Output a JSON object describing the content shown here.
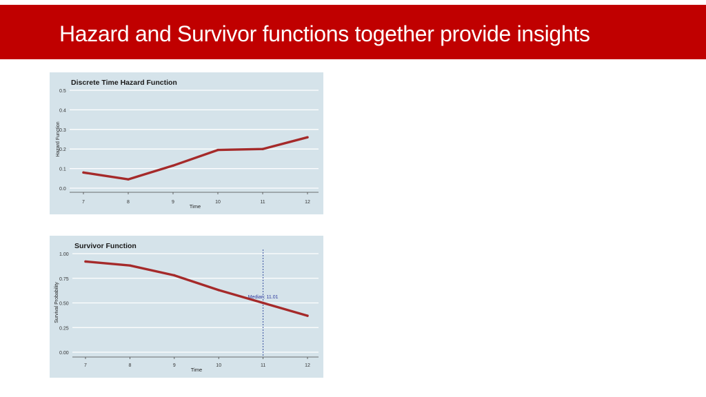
{
  "slide": {
    "title": "Hazard and Survivor functions together provide insights"
  },
  "colors": {
    "header_bg": "#c00000",
    "panel_bg": "#d5e3ea",
    "line": "#a52a2a",
    "median_line": "#1f3a93",
    "median_text": "#2e3a9e"
  },
  "chart_data": [
    {
      "type": "line",
      "title": "Discrete Time Hazard Function",
      "xlabel": "Time",
      "ylabel": "Hazard Function",
      "xlim": [
        7,
        12
      ],
      "ylim": [
        0,
        0.5
      ],
      "x_ticks": [
        "7",
        "8",
        "9",
        "10",
        "11",
        "12"
      ],
      "y_ticks": [
        "0.0",
        "0.1",
        "0.2",
        "0.3",
        "0.4",
        "0.5"
      ],
      "x": [
        7,
        8,
        9,
        10,
        11,
        12
      ],
      "y": [
        0.08,
        0.045,
        0.115,
        0.195,
        0.2,
        0.26
      ],
      "grid": true
    },
    {
      "type": "line",
      "title": "Survivor Function",
      "xlabel": "Time",
      "ylabel": "Survival Probability",
      "xlim": [
        7,
        12
      ],
      "ylim": [
        0,
        1
      ],
      "x_ticks": [
        "7",
        "8",
        "9",
        "10",
        "11",
        "12"
      ],
      "y_ticks": [
        "0.00",
        "0.25",
        "0.50",
        "0.75",
        "1.00"
      ],
      "x": [
        7,
        8,
        9,
        10,
        11,
        12
      ],
      "y": [
        0.92,
        0.88,
        0.78,
        0.63,
        0.5,
        0.37
      ],
      "grid": true,
      "annotation": {
        "x": 11,
        "label": "Median: 11.01"
      }
    }
  ]
}
